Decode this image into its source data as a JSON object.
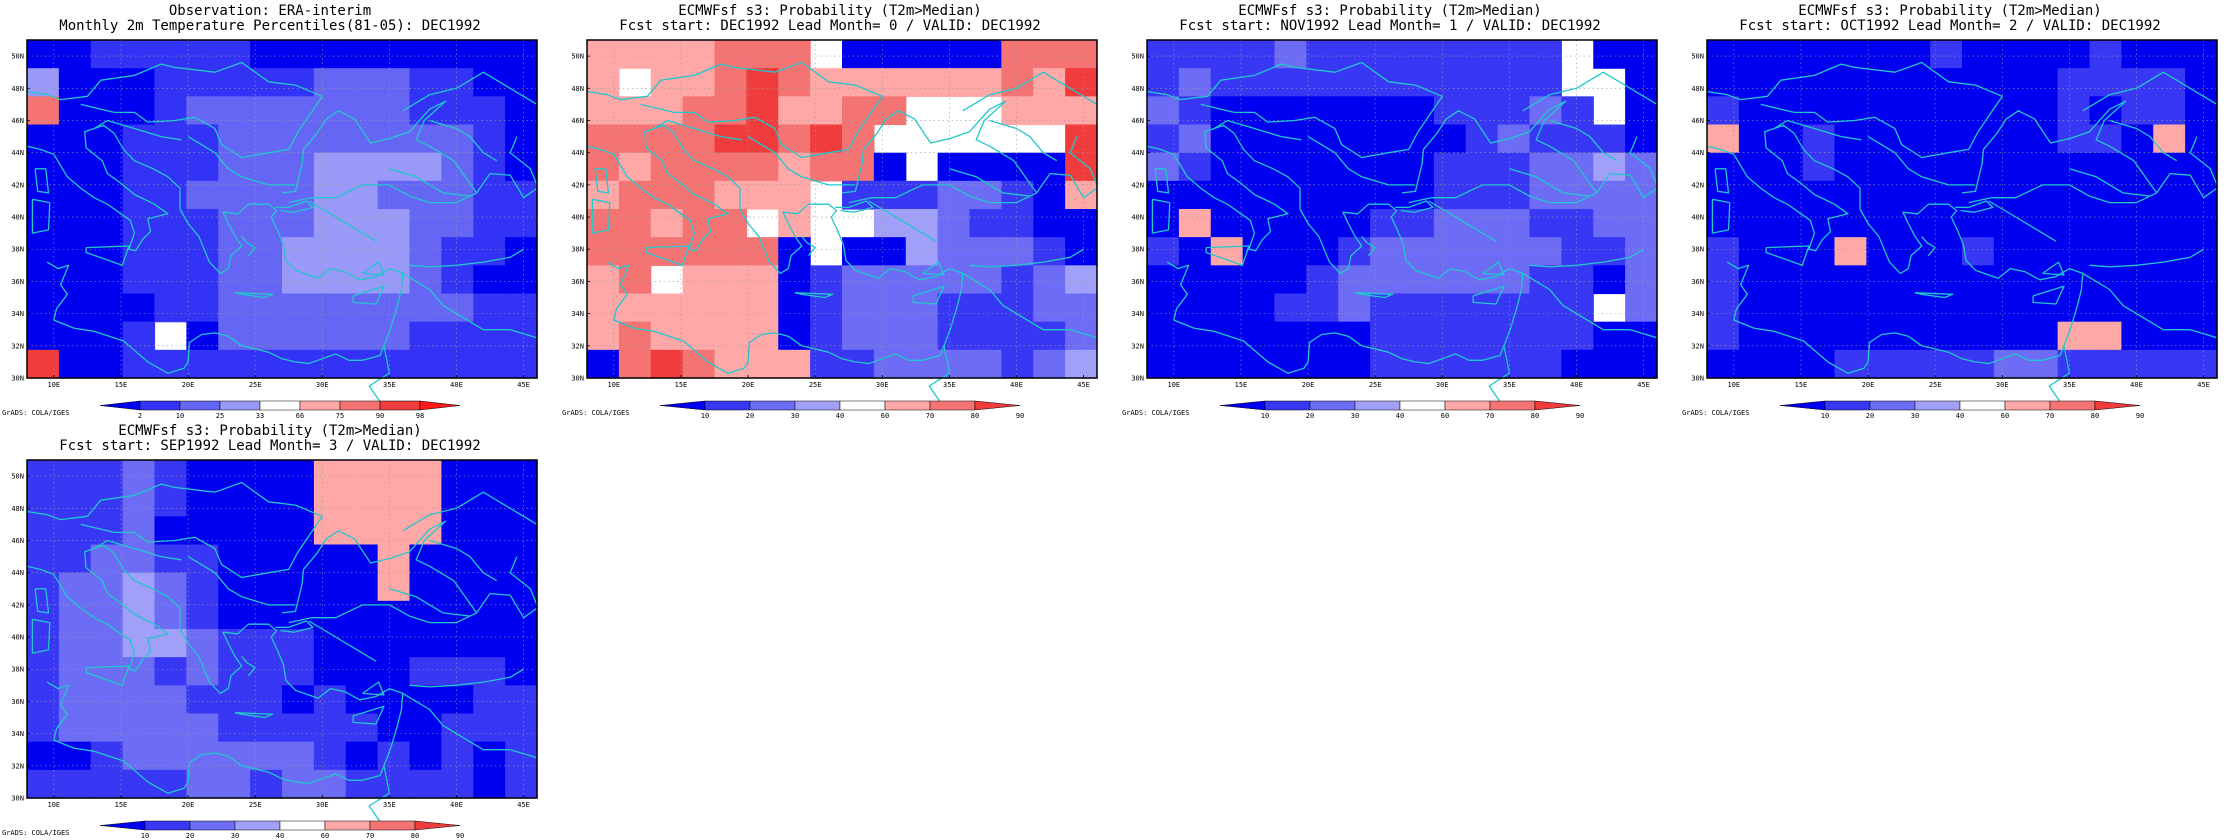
{
  "colors": {
    "coastline": "#22c7cc",
    "obs_scale": [
      "#0000f0",
      "#3333f5",
      "#6666f5",
      "#9999f8",
      "#ffffff",
      "#ffa8a8",
      "#f47474",
      "#f03c3c",
      "#ff1a1a"
    ],
    "fc_scale": [
      "#0000f0",
      "#3838f4",
      "#6c6cf5",
      "#a0a0f9",
      "#ffffff",
      "#ffa8a8",
      "#f47474",
      "#f03c3c"
    ]
  },
  "map_labels": {
    "lat": [
      "50N",
      "48N",
      "46N",
      "44N",
      "42N",
      "40N",
      "38N",
      "36N",
      "34N",
      "32N",
      "30N"
    ],
    "lon": [
      "10E",
      "15E",
      "20E",
      "25E",
      "30E",
      "35E",
      "40E",
      "45E"
    ],
    "grads_credit": "GrADS: COLA/IGES"
  },
  "panels": [
    {
      "title1": "Observation: ERA-interim",
      "title2": "Monthly 2m Temperature Percentiles(81-05): DEC1992",
      "scale": "obs",
      "colorbar": [
        "2",
        "10",
        "25",
        "33",
        "66",
        "75",
        "90",
        "98"
      ],
      "grid": [
        "0011111000000000",
        "3000111112221100",
        "6000122222221110",
        "0001112222222210",
        "0001112223333210",
        "0001122223322211",
        "0001112223332211",
        "0001112233332110",
        "0001112233332100",
        "0000112222222211",
        "0001402222221111",
        "7001111111111111"
      ]
    },
    {
      "title1": "ECMWFsf s3: Probability (T2m>Median)",
      "title2": "Fcst start: DEC1992  Lead Month= 0 / VALID: DEC1992",
      "scale": "fc",
      "colorbar": [
        "10",
        "20",
        "30",
        "40",
        "60",
        "70",
        "80",
        "90"
      ],
      "grid": [
        "5555666400000666",
        "5455676555555657",
        "5556675566444555",
        "6666776764444447",
        "6566665660400007",
        "5666555411122105",
        "6656645443321100",
        "6666660400322210",
        "5645550122222123",
        "5555550122211122",
        "5655550122211112",
        "0676555112222123"
      ]
    },
    {
      "title1": "ECMWFsf s3: Probability (T2m>Median)",
      "title2": "Fcst start: NOV1992  Lead Month= 1 / VALID: DEC1992",
      "scale": "fc",
      "colorbar": [
        "10",
        "20",
        "30",
        "40",
        "60",
        "70",
        "80",
        "90"
      ],
      "grid": [
        "1111211111111400",
        "1211111111111440",
        "2100000001112140",
        "1200000000121110",
        "2100000001112232",
        "0000000001112222",
        "0500000112221122",
        "1050001222222112",
        "0000012222221102",
        "0000112111111142",
        "0000000111111100",
        "0000000111111000"
      ]
    },
    {
      "title1": "ECMWFsf s3: Probability (T2m>Median)",
      "title2": "Fcst start: OCT1992  Lead Month= 2 / VALID: DEC1992",
      "scale": "fc",
      "colorbar": [
        "10",
        "20",
        "30",
        "40",
        "60",
        "70",
        "80",
        "90"
      ],
      "grid": [
        "0000000100001000",
        "0000000000011110",
        "1000000000010110",
        "5001000000011050",
        "0001000000000000",
        "0000000000000000",
        "0000000000000000",
        "1000500010000000",
        "1000000000000000",
        "1000000000000000",
        "1000000000055000",
        "0000111112211111"
      ]
    },
    {
      "title1": "ECMWFsf s3: Probability (T2m>Median)",
      "title2": "Fcst start: SEP1992  Lead Month= 3 / VALID: DEC1992",
      "scale": "fc",
      "colorbar": [
        "10",
        "20",
        "30",
        "40",
        "60",
        "70",
        "80",
        "90"
      ],
      "grid": [
        "1112100005555000",
        "1112100005555000",
        "1112000005555000",
        "1122110000050000",
        "1223210000050000",
        "1223210000000000",
        "1223321110000000",
        "1222121110001110",
        "1222211101000011",
        "1222221111100111",
        "0012222221010101",
        "1111122122111101"
      ]
    }
  ]
}
